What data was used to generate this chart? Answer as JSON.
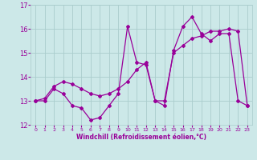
{
  "xlabel": "Windchill (Refroidissement éolien,°C)",
  "bg_color": "#cce8e8",
  "line_color": "#990099",
  "hours": [
    0,
    1,
    2,
    3,
    4,
    5,
    6,
    7,
    8,
    9,
    10,
    11,
    12,
    13,
    14,
    15,
    16,
    17,
    18,
    19,
    20,
    21,
    22,
    23
  ],
  "series1": [
    13.0,
    13.0,
    13.5,
    13.3,
    12.8,
    12.7,
    12.2,
    12.3,
    12.8,
    13.3,
    16.1,
    14.6,
    14.5,
    13.0,
    12.8,
    15.1,
    16.1,
    16.5,
    15.8,
    15.5,
    15.8,
    15.8,
    13.0,
    12.8
  ],
  "series2": [
    13.0,
    13.1,
    13.6,
    13.8,
    13.7,
    13.5,
    13.3,
    13.2,
    13.3,
    13.5,
    13.8,
    14.3,
    14.6,
    13.0,
    13.0,
    15.0,
    15.3,
    15.6,
    15.7,
    15.9,
    15.9,
    16.0,
    15.9,
    12.8
  ],
  "ylim": [
    12,
    17
  ],
  "yticks": [
    12,
    13,
    14,
    15,
    16,
    17
  ],
  "grid_color": "#aacccc",
  "marker": "D",
  "marker_size": 2,
  "linewidth": 0.9
}
